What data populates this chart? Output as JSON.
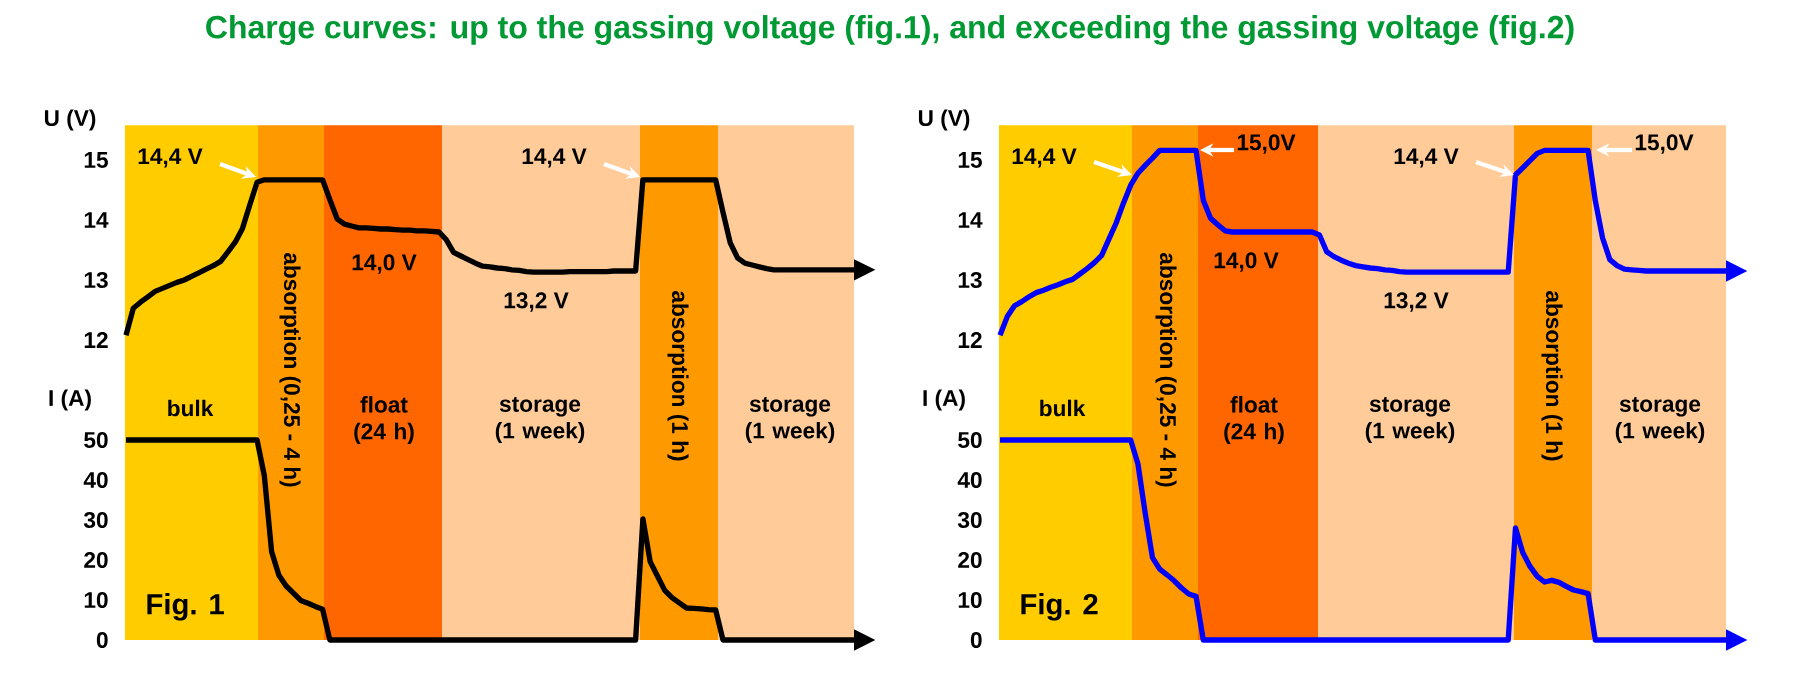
{
  "chart_data": [
    {
      "type": "line",
      "title": "Charge curves: up to the gassing voltage (fig.1), and exceeding the gassing voltage (fig.2)",
      "ylabel": "U (V)",
      "ylim": [
        11.4,
        15.58
      ],
      "yticks": [
        12,
        13,
        14,
        15
      ],
      "tick_labels": "y",
      "categories": [
        null,
        null,
        null,
        null,
        null,
        null,
        null,
        null,
        null,
        null,
        null,
        null,
        null,
        null,
        null,
        null,
        null,
        null,
        null,
        null,
        null,
        null,
        null,
        null,
        null,
        null,
        null,
        null,
        null,
        null,
        null,
        null,
        null,
        null,
        null,
        null,
        null,
        null,
        null,
        null,
        null,
        null,
        null,
        null,
        null,
        null,
        null,
        null,
        null,
        null,
        null,
        null,
        null,
        null,
        null,
        null,
        null,
        null,
        null,
        null,
        null,
        null,
        null,
        null,
        null,
        null,
        null,
        null,
        null,
        null,
        null,
        null,
        null,
        null,
        null,
        null,
        null,
        null,
        null,
        null,
        null,
        null,
        null,
        null,
        null,
        null,
        null,
        null,
        null,
        null,
        null,
        null,
        null,
        null,
        null,
        null,
        null,
        null,
        null,
        null,
        null
      ],
      "series": [
        {
          "color": "#000000",
          "values": [
            12.08,
            12.53,
            12.63,
            12.72,
            12.81,
            12.86,
            12.91,
            12.96,
            13.0,
            13.06,
            13.12,
            13.18,
            13.24,
            13.31,
            13.47,
            13.63,
            13.86,
            14.25,
            14.63,
            14.67,
            14.67,
            14.67,
            14.67,
            14.67,
            14.67,
            14.67,
            14.67,
            14.67,
            14.34,
            14.02,
            13.93,
            13.9,
            13.87,
            13.87,
            13.86,
            13.85,
            13.85,
            13.84,
            13.83,
            13.83,
            13.82,
            13.82,
            13.81,
            13.8,
            13.67,
            13.46,
            13.4,
            13.34,
            13.28,
            13.23,
            13.22,
            13.2,
            13.19,
            13.17,
            13.16,
            13.14,
            13.13,
            13.13,
            13.13,
            13.13,
            13.13,
            13.14,
            13.14,
            13.14,
            13.14,
            13.14,
            13.14,
            13.15,
            13.15,
            13.15,
            13.15,
            14.67,
            14.67,
            14.67,
            14.67,
            14.67,
            14.67,
            14.67,
            14.67,
            14.67,
            14.67,
            14.67,
            14.13,
            13.62,
            13.37,
            13.28,
            13.25,
            13.22,
            13.19,
            13.17,
            13.17,
            13.17,
            13.17,
            13.17,
            13.17,
            13.17,
            13.17,
            13.17,
            13.17,
            13.17,
            13.17
          ]
        }
      ],
      "annotations": [
        "14,4 V",
        "14,0 V",
        "13,2 V",
        "14,4 V"
      ]
    },
    {
      "type": "line",
      "ylabel": "I (A)",
      "ylim": [
        0,
        66
      ],
      "yticks": [
        0,
        10,
        20,
        30,
        40,
        50
      ],
      "tick_labels": "y",
      "categories": [
        null,
        null,
        null,
        null,
        null,
        null,
        null,
        null,
        null,
        null,
        null,
        null,
        null,
        null,
        null,
        null,
        null,
        null,
        null,
        null,
        null,
        null,
        null,
        null,
        null,
        null,
        null,
        null,
        null,
        null,
        null,
        null,
        null,
        null,
        null,
        null,
        null,
        null,
        null,
        null,
        null,
        null,
        null,
        null,
        null,
        null,
        null,
        null,
        null,
        null,
        null,
        null,
        null,
        null,
        null,
        null,
        null,
        null,
        null,
        null,
        null,
        null,
        null,
        null,
        null,
        null,
        null,
        null,
        null,
        null,
        null,
        null,
        null,
        null,
        null,
        null,
        null,
        null,
        null,
        null,
        null,
        null,
        null,
        null,
        null,
        null,
        null,
        null,
        null,
        null,
        null,
        null,
        null,
        null,
        null,
        null,
        null,
        null,
        null,
        null,
        null
      ],
      "series": [
        {
          "color": "#000000",
          "values": [
            50,
            50,
            50,
            50,
            50,
            50,
            50,
            50,
            50,
            50,
            50,
            50,
            50,
            50,
            50,
            50,
            50,
            50,
            50,
            41.1,
            22.1,
            16.2,
            13.5,
            11.7,
            9.9,
            9.2,
            8.4,
            7.7,
            0,
            0,
            0,
            0,
            0,
            0,
            0,
            0,
            0,
            0,
            0,
            0,
            0,
            0,
            0,
            0,
            0,
            0,
            0,
            0,
            0,
            0,
            0,
            0,
            0,
            0,
            0,
            0,
            0,
            0,
            0,
            0,
            0,
            0,
            0,
            0,
            0,
            0,
            0,
            0,
            0,
            0,
            0,
            30.3,
            19.6,
            16.0,
            12.4,
            10.6,
            9.3,
            8.0,
            7.9,
            7.8,
            7.6,
            7.5,
            0,
            0,
            0,
            0,
            0,
            0,
            0,
            0,
            0,
            0,
            0,
            0,
            0,
            0,
            0,
            0,
            0,
            0,
            0
          ]
        }
      ],
      "annotations": [
        "bulk",
        "absorption (0,25 - 4 h)",
        "float (24 h)",
        "storage (1 week)",
        "absorption (1 h)",
        "storage (1 week)",
        "Fig. 1"
      ]
    },
    {
      "type": "line",
      "ylabel": "U (V)",
      "ylim": [
        11.4,
        15.58
      ],
      "yticks": [
        12,
        13,
        14,
        15
      ],
      "tick_labels": "y",
      "categories": [
        null,
        null,
        null,
        null,
        null,
        null,
        null,
        null,
        null,
        null,
        null,
        null,
        null,
        null,
        null,
        null,
        null,
        null,
        null,
        null,
        null,
        null,
        null,
        null,
        null,
        null,
        null,
        null,
        null,
        null,
        null,
        null,
        null,
        null,
        null,
        null,
        null,
        null,
        null,
        null,
        null,
        null,
        null,
        null,
        null,
        null,
        null,
        null,
        null,
        null,
        null,
        null,
        null,
        null,
        null,
        null,
        null,
        null,
        null,
        null,
        null,
        null,
        null,
        null,
        null,
        null,
        null,
        null,
        null,
        null,
        null,
        null,
        null,
        null,
        null,
        null,
        null,
        null,
        null,
        null,
        null,
        null,
        null,
        null,
        null,
        null,
        null,
        null,
        null,
        null,
        null,
        null,
        null,
        null,
        null,
        null,
        null,
        null,
        null,
        null,
        null
      ],
      "series": [
        {
          "color": "#0000ff",
          "values": [
            12.08,
            12.39,
            12.57,
            12.64,
            12.72,
            12.79,
            12.83,
            12.88,
            12.92,
            12.97,
            13.01,
            13.1,
            13.19,
            13.29,
            13.41,
            13.68,
            13.95,
            14.28,
            14.58,
            14.78,
            14.91,
            15.03,
            15.16,
            15.16,
            15.16,
            15.16,
            15.16,
            15.16,
            14.33,
            14.03,
            13.92,
            13.82,
            13.8,
            13.8,
            13.8,
            13.8,
            13.8,
            13.8,
            13.8,
            13.8,
            13.8,
            13.8,
            13.8,
            13.8,
            13.75,
            13.47,
            13.39,
            13.33,
            13.28,
            13.24,
            13.22,
            13.2,
            13.19,
            13.17,
            13.16,
            13.14,
            13.13,
            13.13,
            13.13,
            13.13,
            13.13,
            13.13,
            13.13,
            13.13,
            13.13,
            13.13,
            13.13,
            13.13,
            13.13,
            13.13,
            13.13,
            14.75,
            14.87,
            14.99,
            15.11,
            15.16,
            15.16,
            15.16,
            15.16,
            15.16,
            15.16,
            15.16,
            14.32,
            13.7,
            13.34,
            13.24,
            13.18,
            13.17,
            13.16,
            13.15,
            13.15,
            13.15,
            13.15,
            13.15,
            13.15,
            13.15,
            13.15,
            13.15,
            13.15,
            13.15,
            13.15
          ]
        }
      ],
      "annotations": [
        "14,4 V",
        "15,0V",
        "14,0 V",
        "13,2 V",
        "14,4 V",
        "15,0V"
      ]
    },
    {
      "type": "line",
      "ylabel": "I (A)",
      "ylim": [
        0,
        66
      ],
      "yticks": [
        0,
        10,
        20,
        30,
        40,
        50
      ],
      "tick_labels": "y",
      "categories": [
        null,
        null,
        null,
        null,
        null,
        null,
        null,
        null,
        null,
        null,
        null,
        null,
        null,
        null,
        null,
        null,
        null,
        null,
        null,
        null,
        null,
        null,
        null,
        null,
        null,
        null,
        null,
        null,
        null,
        null,
        null,
        null,
        null,
        null,
        null,
        null,
        null,
        null,
        null,
        null,
        null,
        null,
        null,
        null,
        null,
        null,
        null,
        null,
        null,
        null,
        null,
        null,
        null,
        null,
        null,
        null,
        null,
        null,
        null,
        null,
        null,
        null,
        null,
        null,
        null,
        null,
        null,
        null,
        null,
        null,
        null,
        null,
        null,
        null,
        null,
        null,
        null,
        null,
        null,
        null,
        null,
        null,
        null,
        null,
        null,
        null,
        null,
        null,
        null,
        null,
        null,
        null,
        null,
        null,
        null,
        null,
        null,
        null,
        null,
        null,
        null
      ],
      "series": [
        {
          "color": "#0000ff",
          "values": [
            50,
            50,
            50,
            50,
            50,
            50,
            50,
            50,
            50,
            50,
            50,
            50,
            50,
            50,
            50,
            50,
            50,
            50,
            50,
            44.0,
            31.7,
            20.6,
            17.7,
            16.3,
            14.8,
            13.0,
            11.5,
            10.9,
            0,
            0,
            0,
            0,
            0,
            0,
            0,
            0,
            0,
            0,
            0,
            0,
            0,
            0,
            0,
            0,
            0,
            0,
            0,
            0,
            0,
            0,
            0,
            0,
            0,
            0,
            0,
            0,
            0,
            0,
            0,
            0,
            0,
            0,
            0,
            0,
            0,
            0,
            0,
            0,
            0,
            0,
            0,
            28.0,
            21.9,
            18.4,
            15.9,
            14.5,
            14.9,
            14.4,
            13.4,
            12.5,
            12.1,
            11.6,
            0,
            0,
            0,
            0,
            0,
            0,
            0,
            0,
            0,
            0,
            0,
            0,
            0,
            0,
            0,
            0,
            0,
            0,
            0
          ]
        }
      ],
      "annotations": [
        "bulk",
        "absorption (0,25 - 4 h)",
        "float (24 h)",
        "storage (1 week)",
        "absorption (1 h)",
        "storage (1 week)",
        "Fig. 2"
      ]
    }
  ]
}
